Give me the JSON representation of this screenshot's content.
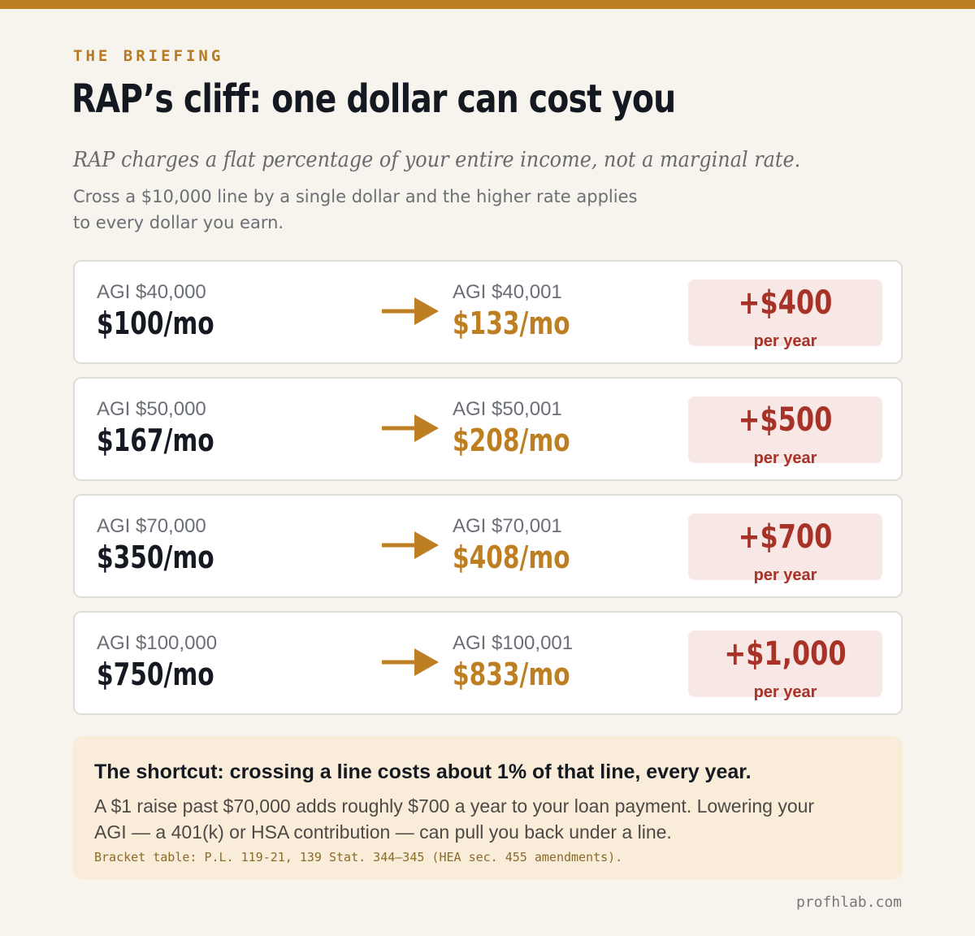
{
  "header": {
    "eyebrow": "THE BRIEFING",
    "title": "RAP’s cliff: one dollar can cost you",
    "subtitle": "RAP charges a flat percentage of your entire income, not a marginal rate.",
    "body": "Cross a $10,000 line by a single dollar and the higher rate applies to every dollar you earn."
  },
  "rows": [
    {
      "left_agi": "AGI $40,000",
      "left_payment": "$100/mo",
      "right_agi": "AGI $40,001",
      "right_payment": "$133/mo",
      "delta": "+$400",
      "delta_unit": "per year"
    },
    {
      "left_agi": "AGI $50,000",
      "left_payment": "$167/mo",
      "right_agi": "AGI $50,001",
      "right_payment": "$208/mo",
      "delta": "+$500",
      "delta_unit": "per year"
    },
    {
      "left_agi": "AGI $70,000",
      "left_payment": "$350/mo",
      "right_agi": "AGI $70,001",
      "right_payment": "$408/mo",
      "delta": "+$700",
      "delta_unit": "per year"
    },
    {
      "left_agi": "AGI $100,000",
      "left_payment": "$750/mo",
      "right_agi": "AGI $100,001",
      "right_payment": "$833/mo",
      "delta": "+$1,000",
      "delta_unit": "per year"
    }
  ],
  "callout": {
    "heading": "The shortcut: crossing a line costs about 1% of that line, every year.",
    "body": "A $1 raise past $70,000 adds roughly $700 a year to your loan payment. Lowering your AGI — a 401(k) or HSA contribution — can pull you back under a line.",
    "source": "Bracket table: P.L. 119-21, 139 Stat. 344–345 (HEA sec. 455 amendments)."
  },
  "footer": {
    "site": "profhlab.com"
  },
  "colors": {
    "accent": "#bd7f22",
    "title": "#141821",
    "delta_text": "#a73228",
    "delta_bg": "#f8e8e5",
    "callout_bg": "#f9ecd8",
    "page_bg": "#f7f4ee"
  },
  "icons": {
    "row_arrow": "arrow-right-icon"
  }
}
